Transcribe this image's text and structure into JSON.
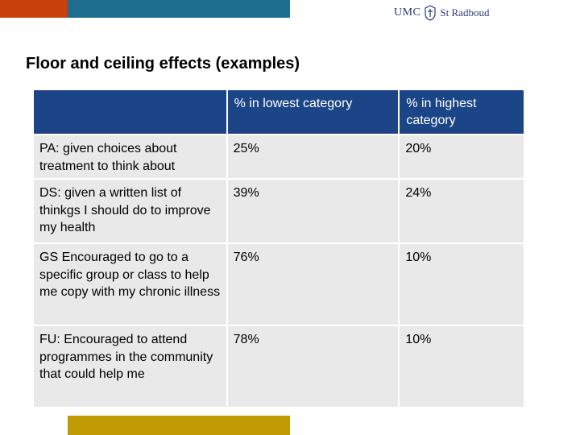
{
  "slide": {
    "title": "Floor and ceiling effects (examples)",
    "colors": {
      "orange_bar": "#c8410c",
      "teal_bar": "#1d6d8e",
      "header_blue": "#1c4587",
      "gold_bar": "#bf9a00",
      "cell_gray": "#e9e9e9"
    }
  },
  "logo": {
    "umc": "UMC",
    "name": "St Radboud",
    "icon": "seal-icon"
  },
  "table": {
    "headers": [
      "",
      "% in lowest category",
      "% in highest category"
    ],
    "rows": [
      [
        "PA: given choices about treatment to think about",
        "25%",
        "20%"
      ],
      [
        "DS: given a written list of thinkgs I should do to improve my health",
        "39%",
        "24%"
      ],
      [
        "GS Encouraged to go to a specific group or class to help me copy with my chronic illness",
        "76%",
        "10%"
      ],
      [
        "FU: Encouraged to attend programmes in the community that could help me",
        "78%",
        "10%"
      ]
    ]
  }
}
